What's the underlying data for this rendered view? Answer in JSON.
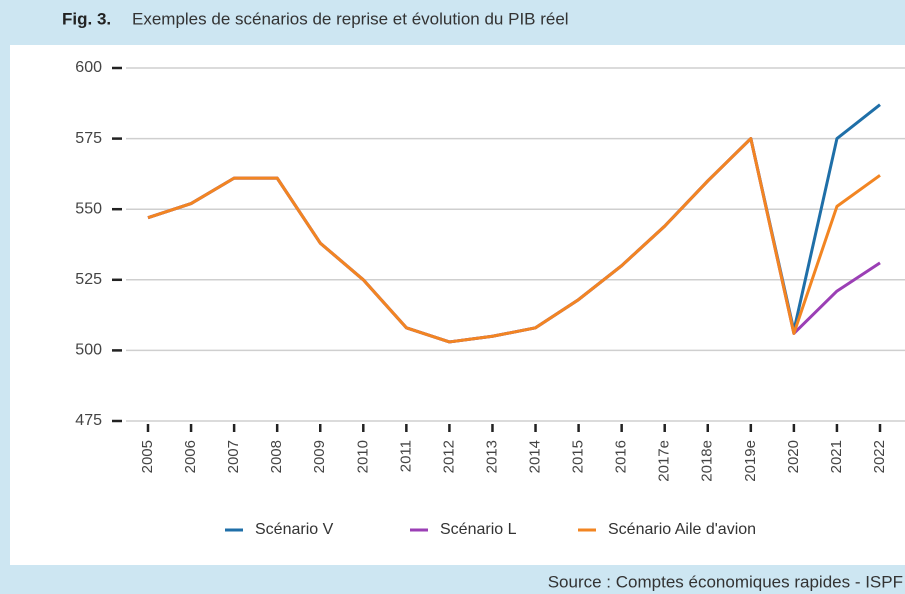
{
  "chart_data": {
    "type": "line",
    "title_label": "Fig. 3.",
    "title": "Exemples de scénarios de reprise et évolution du PIB réel",
    "source": "Source : Comptes économiques rapides - ISPF",
    "categories": [
      "2005",
      "2006",
      "2007",
      "2008",
      "2009",
      "2010",
      "2011",
      "2012",
      "2013",
      "2014",
      "2015",
      "2016",
      "2017e",
      "2018e",
      "2019e",
      "2020",
      "2021",
      "2022"
    ],
    "series": [
      {
        "name": "Scénario V",
        "color": "#1f6fa8",
        "values": [
          547,
          552,
          561,
          561,
          538,
          525,
          508,
          503,
          505,
          508,
          518,
          530,
          544,
          560,
          575,
          507,
          575,
          587
        ]
      },
      {
        "name": "Scénario L",
        "color": "#9b3fb5",
        "values": [
          547,
          552,
          561,
          561,
          538,
          525,
          508,
          503,
          505,
          508,
          518,
          530,
          544,
          560,
          575,
          506,
          521,
          531
        ]
      },
      {
        "name": "Scénario Aile d'avion",
        "color": "#f28522",
        "values": [
          547,
          552,
          561,
          561,
          538,
          525,
          508,
          503,
          505,
          508,
          518,
          530,
          544,
          560,
          575,
          506,
          551,
          562
        ]
      }
    ],
    "ylim": [
      475,
      600
    ],
    "yticks": [
      475,
      500,
      525,
      550,
      575,
      600
    ],
    "grid": true,
    "legend": "bottom"
  }
}
